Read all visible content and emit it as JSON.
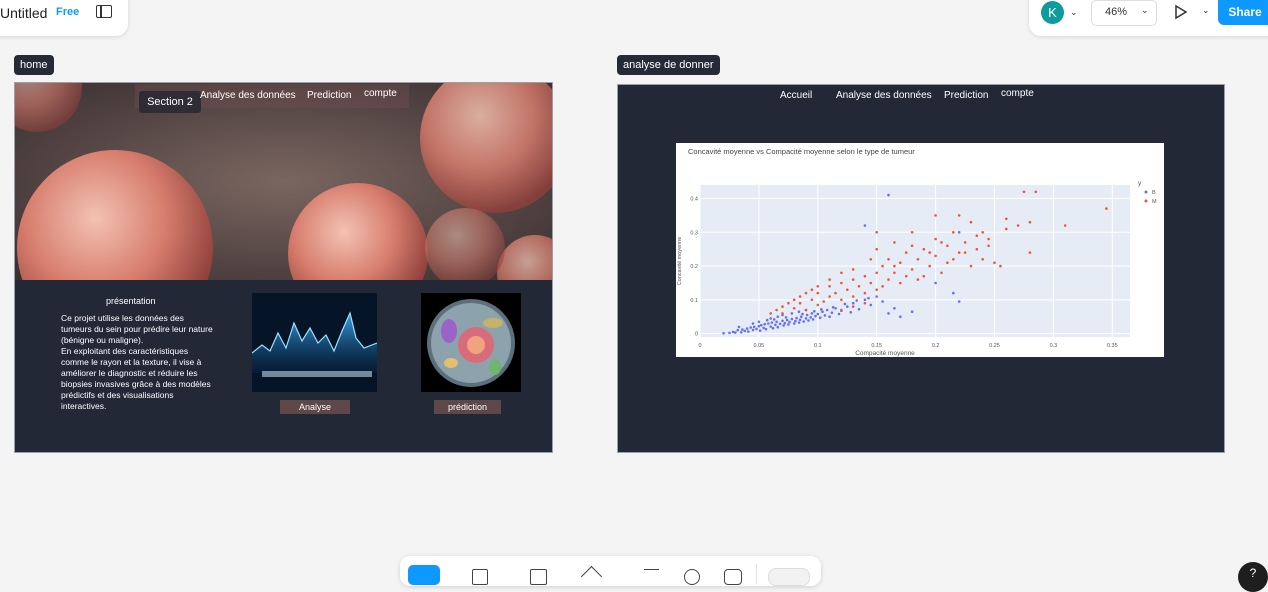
{
  "file": {
    "title": "Untitled",
    "plan": "Free"
  },
  "toolbar": {
    "avatar_initial": "K",
    "zoom": "46%",
    "share_label": "Share",
    "help_label": "?"
  },
  "frames": {
    "home": {
      "label": "home",
      "section_chip": "Section 2",
      "nav": [
        "Analyse des données",
        "Prediction",
        "compte"
      ],
      "presentation_title": "présentation",
      "presentation_text": "Ce projet utilise les données des tumeurs du sein pour prédire leur nature (bénigne ou maligne).\nEn exploitant des caractéristiques comme le rayon et la texture, il vise à améliorer le diagnostic et réduire les biopsies invasives grâce à des modèles prédictifs et des visualisations interactives.",
      "btn_analyse": "Analyse",
      "btn_prediction": "prédiction"
    },
    "analyse": {
      "label": "analyse de donner",
      "nav": [
        "Accueil",
        "Analyse des données",
        "Prediction",
        "compte"
      ]
    }
  },
  "chart_data": {
    "type": "scatter",
    "title": "Concavité moyenne vs Compacité moyenne selon le type de tumeur",
    "xlabel": "Compacité moyenne",
    "ylabel": "Concavité moyenne",
    "xlim": [
      0,
      0.365
    ],
    "ylim": [
      -0.01,
      0.44
    ],
    "xticks": [
      "0",
      "0.05",
      "0.1",
      "0.15",
      "0.2",
      "0.25",
      "0.3",
      "0.35"
    ],
    "xtick_values": [
      0,
      0.05,
      0.1,
      0.15,
      0.2,
      0.25,
      0.3,
      0.35
    ],
    "yticks": [
      "0",
      "0.1",
      "0.2",
      "0.3",
      "0.4"
    ],
    "ytick_values": [
      0,
      0.1,
      0.2,
      0.3,
      0.4
    ],
    "legend_title": "y",
    "series": [
      {
        "name": "B",
        "color": "#636efa",
        "points": [
          [
            0.02,
            0.001
          ],
          [
            0.025,
            0.002
          ],
          [
            0.028,
            0.005
          ],
          [
            0.03,
            0.003
          ],
          [
            0.032,
            0.01
          ],
          [
            0.035,
            0.004
          ],
          [
            0.036,
            0.012
          ],
          [
            0.038,
            0.008
          ],
          [
            0.04,
            0.015
          ],
          [
            0.041,
            0.006
          ],
          [
            0.043,
            0.018
          ],
          [
            0.045,
            0.011
          ],
          [
            0.046,
            0.02
          ],
          [
            0.048,
            0.014
          ],
          [
            0.05,
            0.022
          ],
          [
            0.051,
            0.009
          ],
          [
            0.052,
            0.025
          ],
          [
            0.054,
            0.017
          ],
          [
            0.055,
            0.028
          ],
          [
            0.056,
            0.013
          ],
          [
            0.058,
            0.03
          ],
          [
            0.06,
            0.021
          ],
          [
            0.061,
            0.033
          ],
          [
            0.062,
            0.016
          ],
          [
            0.064,
            0.026
          ],
          [
            0.065,
            0.035
          ],
          [
            0.066,
            0.019
          ],
          [
            0.068,
            0.029
          ],
          [
            0.07,
            0.038
          ],
          [
            0.071,
            0.024
          ],
          [
            0.072,
            0.031
          ],
          [
            0.074,
            0.04
          ],
          [
            0.075,
            0.027
          ],
          [
            0.076,
            0.034
          ],
          [
            0.078,
            0.043
          ],
          [
            0.08,
            0.03
          ],
          [
            0.081,
            0.037
          ],
          [
            0.082,
            0.046
          ],
          [
            0.084,
            0.033
          ],
          [
            0.085,
            0.041
          ],
          [
            0.086,
            0.05
          ],
          [
            0.088,
            0.036
          ],
          [
            0.09,
            0.045
          ],
          [
            0.091,
            0.055
          ],
          [
            0.092,
            0.039
          ],
          [
            0.094,
            0.048
          ],
          [
            0.095,
            0.06
          ],
          [
            0.096,
            0.042
          ],
          [
            0.098,
            0.052
          ],
          [
            0.1,
            0.058
          ],
          [
            0.102,
            0.047
          ],
          [
            0.104,
            0.065
          ],
          [
            0.106,
            0.054
          ],
          [
            0.108,
            0.07
          ],
          [
            0.11,
            0.05
          ],
          [
            0.112,
            0.062
          ],
          [
            0.115,
            0.075
          ],
          [
            0.118,
            0.058
          ],
          [
            0.12,
            0.068
          ],
          [
            0.125,
            0.08
          ],
          [
            0.128,
            0.063
          ],
          [
            0.13,
            0.09
          ],
          [
            0.135,
            0.072
          ],
          [
            0.14,
            0.1
          ],
          [
            0.145,
            0.085
          ],
          [
            0.15,
            0.11
          ],
          [
            0.155,
            0.095
          ],
          [
            0.16,
            0.06
          ],
          [
            0.165,
            0.075
          ],
          [
            0.17,
            0.05
          ],
          [
            0.16,
            0.41
          ],
          [
            0.14,
            0.32
          ],
          [
            0.22,
            0.3
          ],
          [
            0.215,
            0.12
          ],
          [
            0.22,
            0.095
          ],
          [
            0.2,
            0.15
          ],
          [
            0.18,
            0.065
          ],
          [
            0.045,
            0.03
          ],
          [
            0.05,
            0.035
          ],
          [
            0.06,
            0.045
          ],
          [
            0.066,
            0.05
          ],
          [
            0.07,
            0.055
          ],
          [
            0.078,
            0.06
          ],
          [
            0.084,
            0.065
          ],
          [
            0.09,
            0.07
          ],
          [
            0.033,
            0.02
          ],
          [
            0.057,
            0.04
          ],
          [
            0.063,
            0.042
          ],
          [
            0.073,
            0.048
          ],
          [
            0.087,
            0.058
          ],
          [
            0.097,
            0.066
          ],
          [
            0.103,
            0.072
          ],
          [
            0.113,
            0.078
          ],
          [
            0.123,
            0.088
          ],
          [
            0.133,
            0.098
          ],
          [
            0.143,
            0.105
          ]
        ]
      },
      {
        "name": "M",
        "color": "#ef553b",
        "points": [
          [
            0.07,
            0.06
          ],
          [
            0.08,
            0.075
          ],
          [
            0.085,
            0.09
          ],
          [
            0.09,
            0.07
          ],
          [
            0.095,
            0.1
          ],
          [
            0.1,
            0.085
          ],
          [
            0.1,
            0.12
          ],
          [
            0.105,
            0.095
          ],
          [
            0.11,
            0.11
          ],
          [
            0.11,
            0.14
          ],
          [
            0.115,
            0.12
          ],
          [
            0.12,
            0.1
          ],
          [
            0.12,
            0.15
          ],
          [
            0.125,
            0.13
          ],
          [
            0.13,
            0.16
          ],
          [
            0.13,
            0.11
          ],
          [
            0.135,
            0.14
          ],
          [
            0.14,
            0.17
          ],
          [
            0.14,
            0.12
          ],
          [
            0.145,
            0.15
          ],
          [
            0.15,
            0.18
          ],
          [
            0.15,
            0.13
          ],
          [
            0.155,
            0.2
          ],
          [
            0.16,
            0.16
          ],
          [
            0.16,
            0.22
          ],
          [
            0.165,
            0.18
          ],
          [
            0.17,
            0.21
          ],
          [
            0.17,
            0.15
          ],
          [
            0.175,
            0.24
          ],
          [
            0.18,
            0.19
          ],
          [
            0.18,
            0.26
          ],
          [
            0.185,
            0.22
          ],
          [
            0.19,
            0.17
          ],
          [
            0.19,
            0.25
          ],
          [
            0.195,
            0.2
          ],
          [
            0.2,
            0.28
          ],
          [
            0.2,
            0.23
          ],
          [
            0.205,
            0.18
          ],
          [
            0.21,
            0.26
          ],
          [
            0.21,
            0.21
          ],
          [
            0.215,
            0.3
          ],
          [
            0.22,
            0.24
          ],
          [
            0.22,
            0.35
          ],
          [
            0.225,
            0.27
          ],
          [
            0.23,
            0.2
          ],
          [
            0.23,
            0.33
          ],
          [
            0.235,
            0.25
          ],
          [
            0.24,
            0.3
          ],
          [
            0.24,
            0.22
          ],
          [
            0.245,
            0.28
          ],
          [
            0.25,
            0.21
          ],
          [
            0.255,
            0.2
          ],
          [
            0.26,
            0.31
          ],
          [
            0.27,
            0.32
          ],
          [
            0.28,
            0.33
          ],
          [
            0.275,
            0.42
          ],
          [
            0.285,
            0.42
          ],
          [
            0.28,
            0.24
          ],
          [
            0.31,
            0.32
          ],
          [
            0.345,
            0.37
          ],
          [
            0.26,
            0.34
          ],
          [
            0.2,
            0.35
          ],
          [
            0.18,
            0.3
          ],
          [
            0.165,
            0.27
          ],
          [
            0.15,
            0.25
          ],
          [
            0.145,
            0.22
          ],
          [
            0.13,
            0.19
          ],
          [
            0.12,
            0.18
          ],
          [
            0.11,
            0.16
          ],
          [
            0.1,
            0.14
          ],
          [
            0.095,
            0.13
          ],
          [
            0.09,
            0.12
          ],
          [
            0.085,
            0.11
          ],
          [
            0.08,
            0.1
          ],
          [
            0.075,
            0.09
          ],
          [
            0.07,
            0.08
          ],
          [
            0.065,
            0.07
          ],
          [
            0.06,
            0.06
          ],
          [
            0.12,
            0.07
          ],
          [
            0.13,
            0.08
          ],
          [
            0.14,
            0.09
          ],
          [
            0.155,
            0.14
          ],
          [
            0.165,
            0.2
          ],
          [
            0.175,
            0.17
          ],
          [
            0.185,
            0.16
          ],
          [
            0.195,
            0.24
          ],
          [
            0.205,
            0.27
          ],
          [
            0.215,
            0.22
          ],
          [
            0.225,
            0.24
          ],
          [
            0.235,
            0.29
          ],
          [
            0.245,
            0.26
          ],
          [
            0.15,
            0.3
          ]
        ]
      }
    ]
  }
}
